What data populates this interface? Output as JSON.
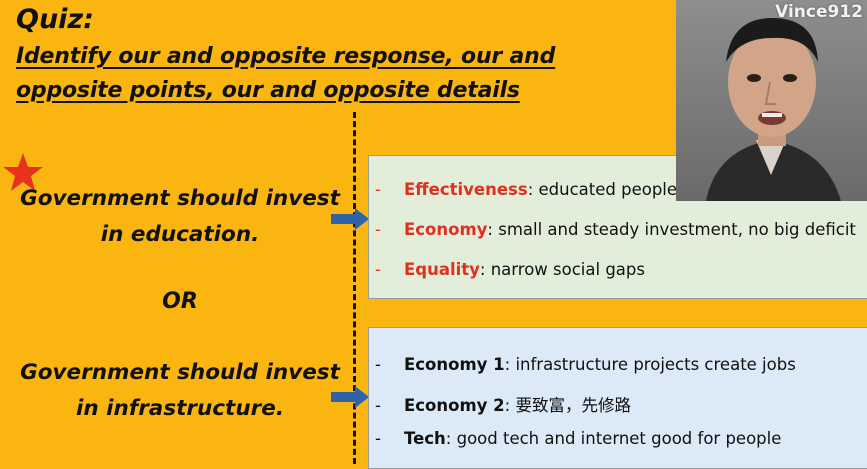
{
  "slide": {
    "title": "Quiz:",
    "question_line1": "Identify our and opposite response, our and",
    "question_line2": "opposite points, our and opposite details",
    "statement1_line1": "Government should invest",
    "statement1_line2": "in education.",
    "or_label": "OR",
    "statement2_line1": "Government should invest",
    "statement2_line2": "in infrastructure.",
    "box1_items": [
      {
        "dash": "-",
        "keyword": "Effectiveness",
        "rest": ": educated people m"
      },
      {
        "dash": "-",
        "keyword": "Economy",
        "rest": ": small and steady investment, no big deficit"
      },
      {
        "dash": "-",
        "keyword": "Equality",
        "rest": ": narrow social gaps"
      }
    ],
    "box2_items": [
      {
        "dash": "-",
        "keyword": "Economy 1",
        "rest": ": infrastructure projects create jobs"
      },
      {
        "dash": "-",
        "keyword": "Economy 2",
        "rest": ": 要致富，先修路"
      },
      {
        "dash": "-",
        "keyword": "Tech",
        "rest": ": good tech and internet good for people"
      }
    ]
  },
  "webcam": {
    "watermark": "Vince912"
  },
  "colors": {
    "background": "#FBB511",
    "accent_red": "#E0301E",
    "arrow_blue": "#2F63A8",
    "box1_bg": "#E3EEDA",
    "box2_bg": "#DCE9F6"
  },
  "icons": {
    "star": "star-icon",
    "arrow": "right-arrow-icon"
  }
}
